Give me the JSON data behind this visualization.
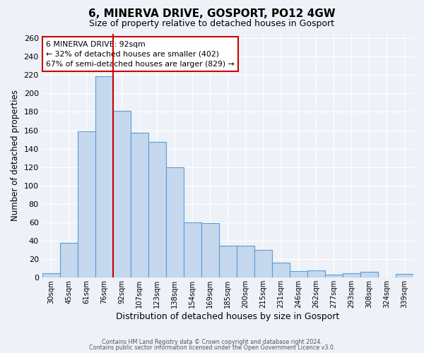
{
  "title": "6, MINERVA DRIVE, GOSPORT, PO12 4GW",
  "subtitle": "Size of property relative to detached houses in Gosport",
  "xlabel": "Distribution of detached houses by size in Gosport",
  "ylabel": "Number of detached properties",
  "bar_labels": [
    "30sqm",
    "45sqm",
    "61sqm",
    "76sqm",
    "92sqm",
    "107sqm",
    "123sqm",
    "138sqm",
    "154sqm",
    "169sqm",
    "185sqm",
    "200sqm",
    "215sqm",
    "231sqm",
    "246sqm",
    "262sqm",
    "277sqm",
    "293sqm",
    "308sqm",
    "324sqm",
    "339sqm"
  ],
  "bar_values": [
    5,
    38,
    159,
    219,
    181,
    157,
    147,
    120,
    60,
    59,
    35,
    35,
    30,
    16,
    7,
    8,
    3,
    5,
    6,
    0,
    4
  ],
  "bar_color": "#c5d8ed",
  "bar_edge_color": "#5b9bd5",
  "vline_x": 3.5,
  "vline_color": "#cc0000",
  "annotation_title": "6 MINERVA DRIVE: 92sqm",
  "annotation_line1": "← 32% of detached houses are smaller (402)",
  "annotation_line2": "67% of semi-detached houses are larger (829) →",
  "annotation_box_color": "#ffffff",
  "annotation_box_edge_color": "#cc0000",
  "ylim": [
    0,
    265
  ],
  "yticks": [
    0,
    20,
    40,
    60,
    80,
    100,
    120,
    140,
    160,
    180,
    200,
    220,
    240,
    260
  ],
  "footer1": "Contains HM Land Registry data © Crown copyright and database right 2024.",
  "footer2": "Contains public sector information licensed under the Open Government Licence v3.0.",
  "bg_color": "#eef2f8",
  "grid_color": "#ffffff"
}
